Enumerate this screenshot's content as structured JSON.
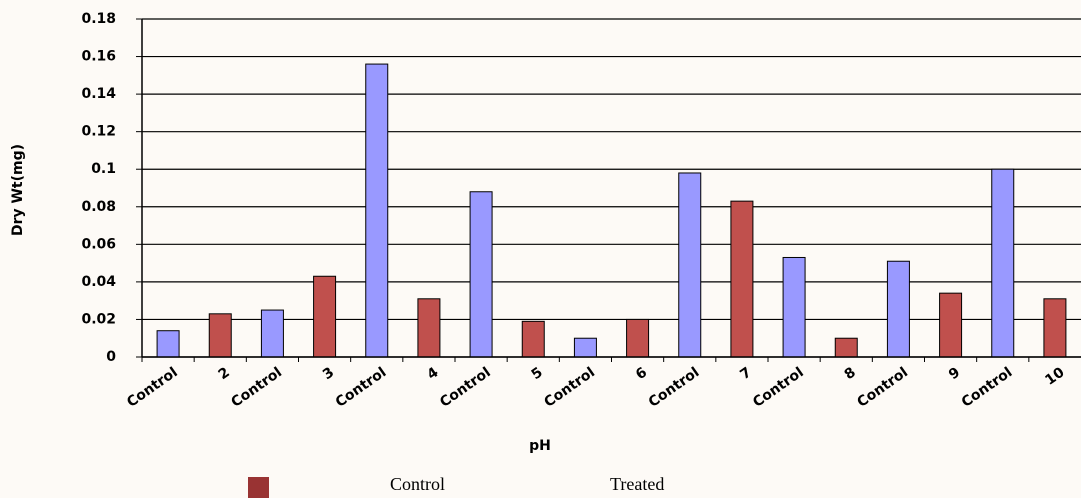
{
  "chart_data": {
    "type": "bar",
    "x_label": "pH",
    "y_label": "Dry Wt(mg)",
    "categories": [
      "Control",
      "2",
      "Control",
      "3",
      "Control",
      "4",
      "Control",
      "5",
      "Control",
      "6",
      "Control",
      "7",
      "Control",
      "8",
      "Control",
      "9",
      "Control",
      "10"
    ],
    "series": [
      {
        "name": "Control",
        "color": "#9999ff",
        "values": [
          0.014,
          null,
          0.025,
          null,
          0.156,
          null,
          0.088,
          null,
          0.01,
          null,
          0.098,
          null,
          0.053,
          null,
          0.051,
          null,
          0.1,
          null
        ]
      },
      {
        "name": "Treated",
        "color": "#c0504d",
        "values": [
          null,
          0.023,
          null,
          0.043,
          null,
          0.031,
          null,
          0.019,
          null,
          0.02,
          null,
          0.083,
          null,
          0.01,
          null,
          0.034,
          null,
          0.031
        ]
      }
    ],
    "ylim": [
      0,
      0.18
    ],
    "yticks": [
      0,
      0.02,
      0.04,
      0.06,
      0.08,
      0.1,
      0.12,
      0.14,
      0.16,
      0.18
    ],
    "grid": true,
    "legend_marker_color": "#993333"
  }
}
